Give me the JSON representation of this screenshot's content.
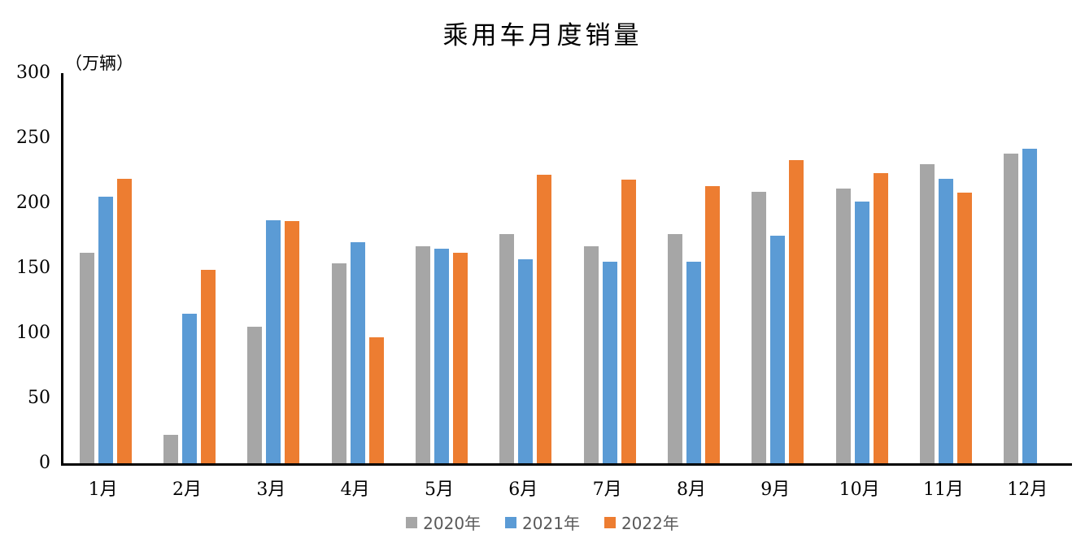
{
  "chart_data": {
    "type": "bar",
    "title": "乘用车月度销量",
    "unit_label": "（万辆）",
    "xlabel": "",
    "ylabel": "万辆",
    "ylim": [
      0,
      300
    ],
    "yticks": [
      0,
      50,
      100,
      150,
      200,
      250,
      300
    ],
    "grid": false,
    "legend_position": "bottom",
    "categories": [
      "1月",
      "2月",
      "3月",
      "4月",
      "5月",
      "6月",
      "7月",
      "8月",
      "9月",
      "10月",
      "11月",
      "12月"
    ],
    "series": [
      {
        "name": "2020年",
        "color": "#a6a6a6",
        "values": [
          162,
          22,
          105,
          154,
          167,
          176,
          167,
          176,
          209,
          211,
          230,
          238
        ]
      },
      {
        "name": "2021年",
        "color": "#5b9bd5",
        "values": [
          205,
          115,
          187,
          170,
          165,
          157,
          155,
          155,
          175,
          201,
          219,
          242
        ]
      },
      {
        "name": "2022年",
        "color": "#ed7d31",
        "values": [
          219,
          149,
          186,
          97,
          162,
          222,
          218,
          213,
          233,
          223,
          208,
          null
        ]
      }
    ]
  }
}
